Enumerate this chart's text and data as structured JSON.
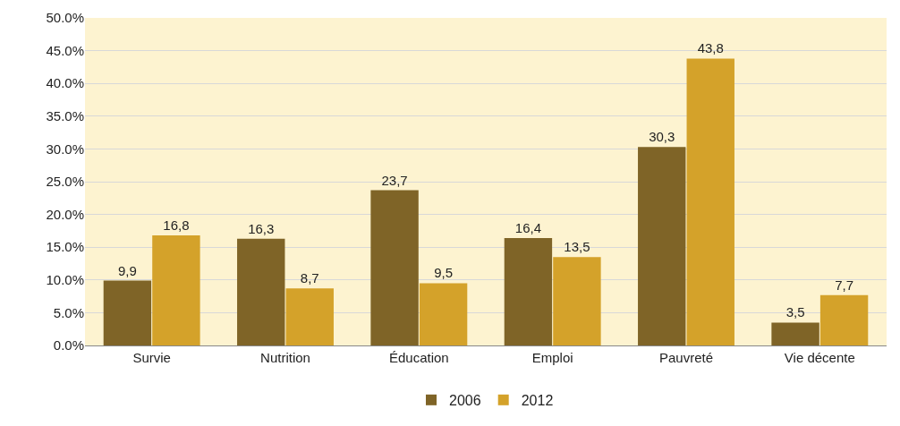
{
  "chart_data": {
    "type": "bar",
    "categories": [
      "Survie",
      "Nutrition",
      "Éducation",
      "Emploi",
      "Pauvreté",
      "Vie décente"
    ],
    "series": [
      {
        "name": "2006",
        "color": "#7f6427",
        "values": [
          9.9,
          16.3,
          23.7,
          16.4,
          30.3,
          3.5
        ],
        "value_labels": [
          "9,9",
          "16,3",
          "23,7",
          "16,4",
          "30,3",
          "3,5"
        ]
      },
      {
        "name": "2012",
        "color": "#d4a22a",
        "values": [
          16.8,
          8.7,
          9.5,
          13.5,
          43.8,
          7.7
        ],
        "value_labels": [
          "16,8",
          "8,7",
          "9,5",
          "13,5",
          "43,8",
          "7,7"
        ]
      }
    ],
    "ylim": [
      0,
      50
    ],
    "yticks": [
      {
        "value": 0,
        "label": "0.0%"
      },
      {
        "value": 5,
        "label": "5.0%"
      },
      {
        "value": 10,
        "label": "10.0%"
      },
      {
        "value": 15,
        "label": "15.0%"
      },
      {
        "value": 20,
        "label": "20.0%"
      },
      {
        "value": 25,
        "label": "25.0%"
      },
      {
        "value": 30,
        "label": "30.0%"
      },
      {
        "value": 35,
        "label": "35.0%"
      },
      {
        "value": 40,
        "label": "40.0%"
      },
      {
        "value": 45,
        "label": "45.0%"
      },
      {
        "value": 50,
        "label": "50.0%"
      }
    ],
    "grid": "y",
    "legend": "bottom"
  }
}
